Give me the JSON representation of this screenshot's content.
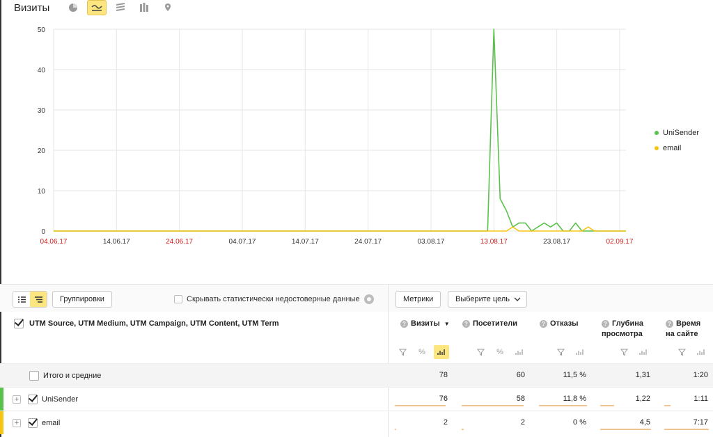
{
  "title": "Визиты",
  "toolbar": {
    "icons": [
      "pie-icon",
      "line-chart-icon",
      "area-chart-icon",
      "bar-chart-icon",
      "map-pin-icon"
    ],
    "active": "line-chart-icon"
  },
  "chart_data": {
    "type": "line",
    "x_labels": [
      "04.06.17",
      "14.06.17",
      "24.06.17",
      "04.07.17",
      "14.07.17",
      "24.07.17",
      "03.08.17",
      "13.08.17",
      "23.08.17",
      "02.09.17"
    ],
    "weekend_labels": [
      "04.06.17",
      "24.06.17",
      "13.08.17",
      "02.09.17"
    ],
    "ylim": [
      0,
      50
    ],
    "y_ticks": [
      "0",
      "10",
      "20",
      "30",
      "40",
      "50"
    ],
    "x_start": "2017-06-04",
    "x_end": "2017-09-03",
    "series": [
      {
        "name": "UniSender",
        "color": "#5bc14d",
        "points": [
          [
            "2017-06-04",
            0
          ],
          [
            "2017-08-12",
            0
          ],
          [
            "2017-08-13",
            50
          ],
          [
            "2017-08-14",
            8
          ],
          [
            "2017-08-15",
            5
          ],
          [
            "2017-08-16",
            1
          ],
          [
            "2017-08-17",
            2
          ],
          [
            "2017-08-18",
            2
          ],
          [
            "2017-08-19",
            0
          ],
          [
            "2017-08-20",
            1
          ],
          [
            "2017-08-21",
            2
          ],
          [
            "2017-08-22",
            1
          ],
          [
            "2017-08-23",
            2
          ],
          [
            "2017-08-24",
            0
          ],
          [
            "2017-08-25",
            0
          ],
          [
            "2017-08-26",
            2
          ],
          [
            "2017-08-27",
            0
          ],
          [
            "2017-08-28",
            0
          ],
          [
            "2017-09-03",
            0
          ]
        ]
      },
      {
        "name": "email",
        "color": "#f6c517",
        "points": [
          [
            "2017-06-04",
            0
          ],
          [
            "2017-08-15",
            0
          ],
          [
            "2017-08-16",
            1
          ],
          [
            "2017-08-17",
            0
          ],
          [
            "2017-08-27",
            0
          ],
          [
            "2017-08-28",
            1
          ],
          [
            "2017-08-29",
            0
          ],
          [
            "2017-09-03",
            0
          ]
        ]
      }
    ],
    "legend_position": "right"
  },
  "controls": {
    "groupings_label": "Группировки",
    "hide_stat_label": "Скрывать статистически недостоверные данные",
    "metrics_label": "Метрики",
    "goal_label": "Выберите цель"
  },
  "table": {
    "dimension_header": "UTM Source, UTM Medium, UTM Campaign, UTM Content, UTM Term",
    "columns": [
      {
        "name": "Визиты",
        "sort": "▼"
      },
      {
        "name": "Посетители"
      },
      {
        "name": "Отказы"
      },
      {
        "name": "Глубина",
        "name2": "просмотра"
      },
      {
        "name": "Время",
        "name2": "на сайте"
      }
    ],
    "rows": [
      {
        "label": "Итого и средние",
        "values": [
          "78",
          "60",
          "11,5 %",
          "1,31",
          "1:20"
        ]
      },
      {
        "label": "UniSender",
        "color": "#5bc14d",
        "values": [
          "76",
          "58",
          "11,8 %",
          "1,22",
          "1:11"
        ],
        "bars": [
          0.97,
          0.97,
          1.0,
          0.27,
          0.14
        ]
      },
      {
        "label": "email",
        "color": "#f6c517",
        "values": [
          "2",
          "2",
          "0 %",
          "4,5",
          "7:17"
        ],
        "bars": [
          0.03,
          0.03,
          0.0,
          1.0,
          1.0
        ]
      }
    ]
  }
}
